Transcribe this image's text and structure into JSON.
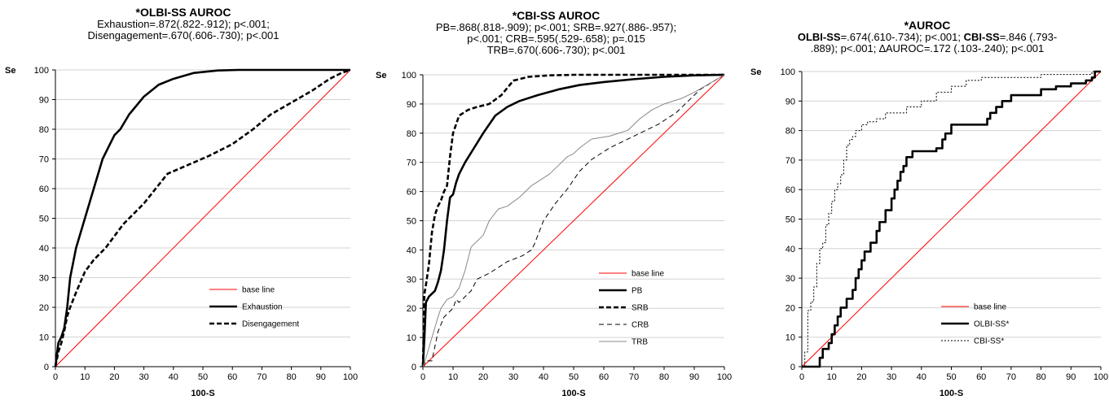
{
  "chart_data": [
    {
      "type": "line",
      "title": "*OLBI-SS AUROC",
      "subtitle": [
        "Exhaustion=.872(.822-.912); p<.001;",
        "Disengagement=.670(.606-.730); p<.001"
      ],
      "xlabel": "100-S",
      "ylabel": "Se",
      "xlim": [
        0,
        100
      ],
      "ylim": [
        0,
        100
      ],
      "xticks": [
        "0",
        "10",
        "20",
        "30",
        "40",
        "50",
        "60",
        "70",
        "80",
        "90",
        "100"
      ],
      "yticks": [
        "0",
        "10",
        "20",
        "30",
        "40",
        "50",
        "60",
        "70",
        "80",
        "90",
        "100"
      ],
      "grid": "horizontal",
      "legend": "bottom-right",
      "series": [
        {
          "name": "base line",
          "color": "#ff0000",
          "style": "solid-thin",
          "x": [
            0,
            100
          ],
          "y": [
            0,
            100
          ]
        },
        {
          "name": "Exhaustion",
          "color": "#000000",
          "style": "solid-thick",
          "x": [
            0,
            1,
            2,
            3,
            4,
            5,
            7,
            10,
            13,
            16,
            19,
            20,
            22,
            25,
            30,
            35,
            40,
            47,
            55,
            62,
            100
          ],
          "y": [
            0,
            8,
            10,
            13,
            20,
            30,
            40,
            50,
            60,
            70,
            76,
            78,
            80,
            85,
            91,
            95,
            97,
            99,
            99.8,
            100,
            100
          ]
        },
        {
          "name": "Disengagement",
          "color": "#000000",
          "style": "dashed-thick",
          "x": [
            0,
            1,
            2,
            3,
            4,
            5,
            7,
            10,
            13,
            17,
            20,
            23,
            26,
            30,
            34,
            38,
            45,
            52,
            60,
            67,
            73,
            80,
            87,
            93,
            97,
            100
          ],
          "y": [
            0,
            5,
            8,
            12,
            17,
            20,
            25,
            32,
            36,
            40,
            44,
            48,
            51,
            55,
            60,
            65,
            68,
            71,
            75,
            80,
            85,
            89,
            93,
            97,
            99,
            100
          ]
        }
      ]
    },
    {
      "type": "line",
      "title": "*CBI-SS AUROC",
      "subtitle": [
        "PB=.868(.818-.909); p<.001; SRB=.927(.886-.957);",
        "p<.001; CRB=.595(.529-.658); p=.015",
        "TRB=.670(.606-.730); p<.001"
      ],
      "xlabel": "100-S",
      "ylabel": "Se",
      "xlim": [
        0,
        100
      ],
      "ylim": [
        0,
        100
      ],
      "xticks": [
        "0",
        "10",
        "20",
        "30",
        "40",
        "50",
        "60",
        "70",
        "80",
        "90",
        "100"
      ],
      "yticks": [
        "0",
        "10",
        "20",
        "30",
        "40",
        "50",
        "60",
        "70",
        "80",
        "90",
        "100"
      ],
      "grid": "horizontal",
      "legend": "bottom-right",
      "series": [
        {
          "name": "base line",
          "color": "#ff0000",
          "style": "solid-thin",
          "x": [
            0,
            100
          ],
          "y": [
            0,
            100
          ]
        },
        {
          "name": "PB",
          "color": "#000000",
          "style": "solid-thick",
          "x": [
            0,
            0.5,
            1,
            2,
            4,
            5,
            6,
            7,
            8,
            9,
            10,
            11,
            12,
            14,
            17,
            20,
            24,
            28,
            32,
            38,
            45,
            52,
            60,
            70,
            80,
            90,
            100
          ],
          "y": [
            0,
            10,
            22,
            24,
            26,
            29,
            33,
            40,
            50,
            58,
            59,
            63,
            66,
            70,
            75,
            80,
            86,
            89,
            91,
            93,
            95,
            96.5,
            97.5,
            98.5,
            99.3,
            99.8,
            100
          ]
        },
        {
          "name": "SRB",
          "color": "#000000",
          "style": "dashed-thick",
          "x": [
            0,
            0.5,
            1,
            2,
            3,
            4,
            5,
            6,
            7,
            8,
            9,
            10,
            12,
            15,
            18,
            22,
            26,
            30,
            35,
            42,
            50,
            100
          ],
          "y": [
            0,
            25,
            28,
            35,
            46,
            52,
            55,
            57,
            60,
            62,
            72,
            80,
            86,
            88,
            89,
            90,
            93,
            98,
            99.3,
            99.8,
            100,
            100
          ]
        },
        {
          "name": "CRB",
          "color": "#000000",
          "style": "dashed-thin",
          "x": [
            0,
            1,
            3,
            4,
            5,
            7,
            9,
            10,
            11,
            12,
            14,
            16,
            18,
            22,
            28,
            33,
            36,
            37,
            40,
            44,
            48,
            52,
            56,
            62,
            70,
            78,
            84,
            88,
            92,
            100
          ],
          "y": [
            0,
            2,
            2,
            7,
            12,
            17,
            19,
            20,
            23,
            22,
            24,
            26,
            30,
            32,
            36,
            38,
            40,
            42,
            50,
            56,
            61,
            67,
            71,
            75,
            79,
            83,
            87,
            91,
            95,
            100
          ]
        },
        {
          "name": "TRB",
          "color": "#888888",
          "style": "solid-thin",
          "x": [
            0,
            1,
            3,
            5,
            6,
            8,
            10,
            12,
            14,
            15,
            16,
            18,
            20,
            22,
            25,
            28,
            32,
            36,
            42,
            48,
            50,
            52,
            56,
            62,
            68,
            72,
            76,
            80,
            86,
            90,
            95,
            100
          ],
          "y": [
            0,
            3,
            10,
            17,
            20,
            23,
            24,
            27,
            33,
            37,
            41,
            43,
            45,
            50,
            54,
            55,
            58,
            62,
            66,
            72,
            73,
            75,
            78,
            79,
            81,
            85,
            88,
            90,
            92,
            94,
            97,
            100
          ]
        }
      ]
    },
    {
      "type": "line",
      "title": "*AUROC",
      "subtitle_parts": [
        {
          "bold": "OLBI-SS",
          "text": "=.674(.610-.734); p<.001; "
        },
        {
          "bold": "CBI-SS",
          "text": "=.846 (.793-"
        },
        {
          "bold": "",
          "text": ".889); p<.001; ∆AUROC=.172 (.103-.240); p<.001"
        }
      ],
      "xlabel": "100-S",
      "ylabel": "Se",
      "xlim": [
        0,
        100
      ],
      "ylim": [
        0,
        100
      ],
      "xticks": [
        "0",
        "10",
        "20",
        "30",
        "40",
        "50",
        "60",
        "70",
        "80",
        "90",
        "100"
      ],
      "yticks": [
        "0",
        "10",
        "20",
        "30",
        "40",
        "50",
        "60",
        "70",
        "80",
        "90",
        "100"
      ],
      "grid": "horizontal",
      "legend": "bottom-right",
      "series": [
        {
          "name": "base line",
          "color": "#ff0000",
          "style": "solid-thin",
          "x": [
            0,
            100
          ],
          "y": [
            0,
            100
          ]
        },
        {
          "name": "OLBI-SS*",
          "color": "#000000",
          "style": "step-thick",
          "x": [
            0,
            5,
            6,
            7,
            9,
            10,
            11,
            12,
            13,
            15,
            17,
            18,
            19,
            20,
            21,
            23,
            25,
            26,
            28,
            30,
            31,
            32,
            33,
            34,
            35,
            37,
            40,
            45,
            47,
            48,
            50,
            55,
            60,
            62,
            63,
            65,
            67,
            70,
            75,
            80,
            85,
            90,
            95,
            97,
            98,
            100
          ],
          "y": [
            0,
            0,
            3,
            6,
            8,
            11,
            14,
            17,
            20,
            23,
            26,
            30,
            33,
            36,
            39,
            42,
            46,
            49,
            53,
            57,
            60,
            63,
            66,
            68,
            71,
            73,
            73,
            74,
            77,
            79,
            82,
            82,
            82,
            84,
            86,
            88,
            90,
            92,
            92,
            94,
            95,
            96,
            97,
            98,
            100,
            100
          ]
        },
        {
          "name": "CBI-SS*",
          "color": "#000000",
          "style": "step-dotted",
          "x": [
            0,
            1,
            2,
            3,
            4,
            5,
            6,
            7,
            8,
            9,
            10,
            11,
            12,
            13,
            14,
            15,
            16,
            17,
            18,
            20,
            22,
            25,
            28,
            30,
            35,
            40,
            45,
            50,
            55,
            60,
            65,
            70,
            80,
            90,
            95,
            97,
            100
          ],
          "y": [
            0,
            5,
            19,
            22,
            27,
            35,
            40,
            42,
            48,
            52,
            56,
            60,
            62,
            65,
            70,
            75,
            77,
            78,
            80,
            82,
            83,
            84,
            86,
            86,
            88,
            90,
            93,
            95,
            97,
            98,
            98,
            98,
            99,
            99,
            99,
            100,
            100
          ]
        }
      ]
    }
  ]
}
